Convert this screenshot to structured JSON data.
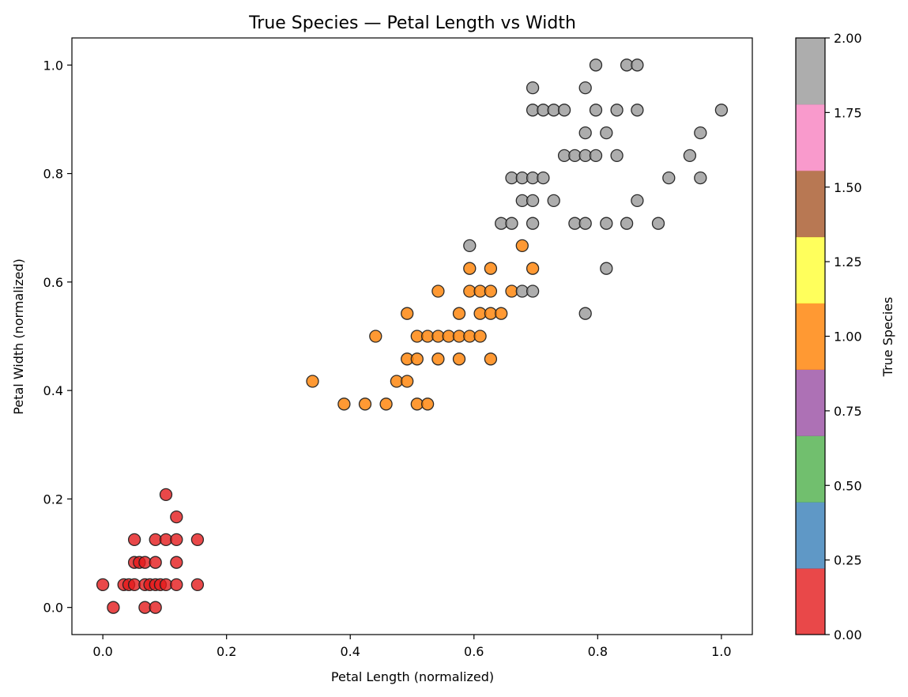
{
  "chart_data": {
    "type": "scatter",
    "title": "True Species — Petal Length vs Width",
    "xlabel": "Petal Length (normalized)",
    "ylabel": "Petal Width (normalized)",
    "xlim": [
      -0.05,
      1.05
    ],
    "ylim": [
      -0.05,
      1.05
    ],
    "xticks": [
      "0.0",
      "0.2",
      "0.4",
      "0.6",
      "0.8",
      "1.0"
    ],
    "yticks": [
      "0.0",
      "0.2",
      "0.4",
      "0.6",
      "0.8",
      "1.0"
    ],
    "grid": false,
    "colorbar": {
      "label": "True Species",
      "range": [
        0,
        2
      ],
      "ticks": [
        "0.00",
        "0.25",
        "0.50",
        "0.75",
        "1.00",
        "1.25",
        "1.50",
        "1.75",
        "2.00"
      ],
      "colors": [
        "#e41a1c",
        "#377eb8",
        "#4daf4a",
        "#984ea3",
        "#ff7f00",
        "#ffff33",
        "#a65628",
        "#f781bf",
        "#999999"
      ]
    },
    "marker": {
      "edgecolor": "#222222",
      "alpha": 0.8
    },
    "series": [
      {
        "species": 0,
        "color": "#e41a1c",
        "points": [
          [
            0.0,
            0.042
          ],
          [
            0.017,
            0.0
          ],
          [
            0.034,
            0.042
          ],
          [
            0.042,
            0.042
          ],
          [
            0.051,
            0.042
          ],
          [
            0.051,
            0.083
          ],
          [
            0.051,
            0.125
          ],
          [
            0.059,
            0.083
          ],
          [
            0.068,
            0.0
          ],
          [
            0.068,
            0.042
          ],
          [
            0.068,
            0.083
          ],
          [
            0.076,
            0.042
          ],
          [
            0.085,
            0.0
          ],
          [
            0.085,
            0.042
          ],
          [
            0.085,
            0.083
          ],
          [
            0.085,
            0.125
          ],
          [
            0.093,
            0.042
          ],
          [
            0.102,
            0.042
          ],
          [
            0.102,
            0.125
          ],
          [
            0.102,
            0.208
          ],
          [
            0.119,
            0.042
          ],
          [
            0.119,
            0.083
          ],
          [
            0.119,
            0.125
          ],
          [
            0.119,
            0.167
          ],
          [
            0.153,
            0.042
          ],
          [
            0.153,
            0.125
          ]
        ]
      },
      {
        "species": 1,
        "color": "#ff7f00",
        "points": [
          [
            0.339,
            0.417
          ],
          [
            0.39,
            0.375
          ],
          [
            0.424,
            0.375
          ],
          [
            0.441,
            0.5
          ],
          [
            0.458,
            0.375
          ],
          [
            0.475,
            0.417
          ],
          [
            0.492,
            0.417
          ],
          [
            0.492,
            0.458
          ],
          [
            0.492,
            0.542
          ],
          [
            0.508,
            0.375
          ],
          [
            0.508,
            0.458
          ],
          [
            0.508,
            0.5
          ],
          [
            0.525,
            0.375
          ],
          [
            0.525,
            0.5
          ],
          [
            0.542,
            0.458
          ],
          [
            0.542,
            0.5
          ],
          [
            0.542,
            0.583
          ],
          [
            0.559,
            0.5
          ],
          [
            0.576,
            0.458
          ],
          [
            0.576,
            0.5
          ],
          [
            0.576,
            0.542
          ],
          [
            0.593,
            0.5
          ],
          [
            0.593,
            0.583
          ],
          [
            0.593,
            0.625
          ],
          [
            0.61,
            0.5
          ],
          [
            0.61,
            0.542
          ],
          [
            0.61,
            0.583
          ],
          [
            0.627,
            0.458
          ],
          [
            0.627,
            0.542
          ],
          [
            0.627,
            0.583
          ],
          [
            0.627,
            0.625
          ],
          [
            0.644,
            0.542
          ],
          [
            0.661,
            0.583
          ],
          [
            0.678,
            0.667
          ],
          [
            0.695,
            0.625
          ]
        ]
      },
      {
        "species": 2,
        "color": "#999999",
        "points": [
          [
            0.593,
            0.667
          ],
          [
            0.644,
            0.708
          ],
          [
            0.661,
            0.708
          ],
          [
            0.661,
            0.792
          ],
          [
            0.678,
            0.583
          ],
          [
            0.678,
            0.75
          ],
          [
            0.678,
            0.792
          ],
          [
            0.695,
            0.583
          ],
          [
            0.695,
            0.708
          ],
          [
            0.695,
            0.75
          ],
          [
            0.695,
            0.792
          ],
          [
            0.695,
            0.917
          ],
          [
            0.695,
            0.958
          ],
          [
            0.712,
            0.792
          ],
          [
            0.712,
            0.917
          ],
          [
            0.729,
            0.75
          ],
          [
            0.729,
            0.917
          ],
          [
            0.746,
            0.833
          ],
          [
            0.746,
            0.917
          ],
          [
            0.763,
            0.708
          ],
          [
            0.763,
            0.833
          ],
          [
            0.78,
            0.542
          ],
          [
            0.78,
            0.708
          ],
          [
            0.78,
            0.833
          ],
          [
            0.78,
            0.875
          ],
          [
            0.78,
            0.958
          ],
          [
            0.797,
            0.833
          ],
          [
            0.797,
            0.917
          ],
          [
            0.797,
            1.0
          ],
          [
            0.814,
            0.625
          ],
          [
            0.814,
            0.708
          ],
          [
            0.814,
            0.875
          ],
          [
            0.831,
            0.833
          ],
          [
            0.831,
            0.917
          ],
          [
            0.847,
            0.708
          ],
          [
            0.847,
            1.0
          ],
          [
            0.864,
            0.75
          ],
          [
            0.864,
            0.917
          ],
          [
            0.864,
            1.0
          ],
          [
            0.898,
            0.708
          ],
          [
            0.915,
            0.792
          ],
          [
            0.949,
            0.833
          ],
          [
            0.966,
            0.792
          ],
          [
            0.966,
            0.875
          ],
          [
            1.0,
            0.917
          ]
        ]
      }
    ]
  }
}
